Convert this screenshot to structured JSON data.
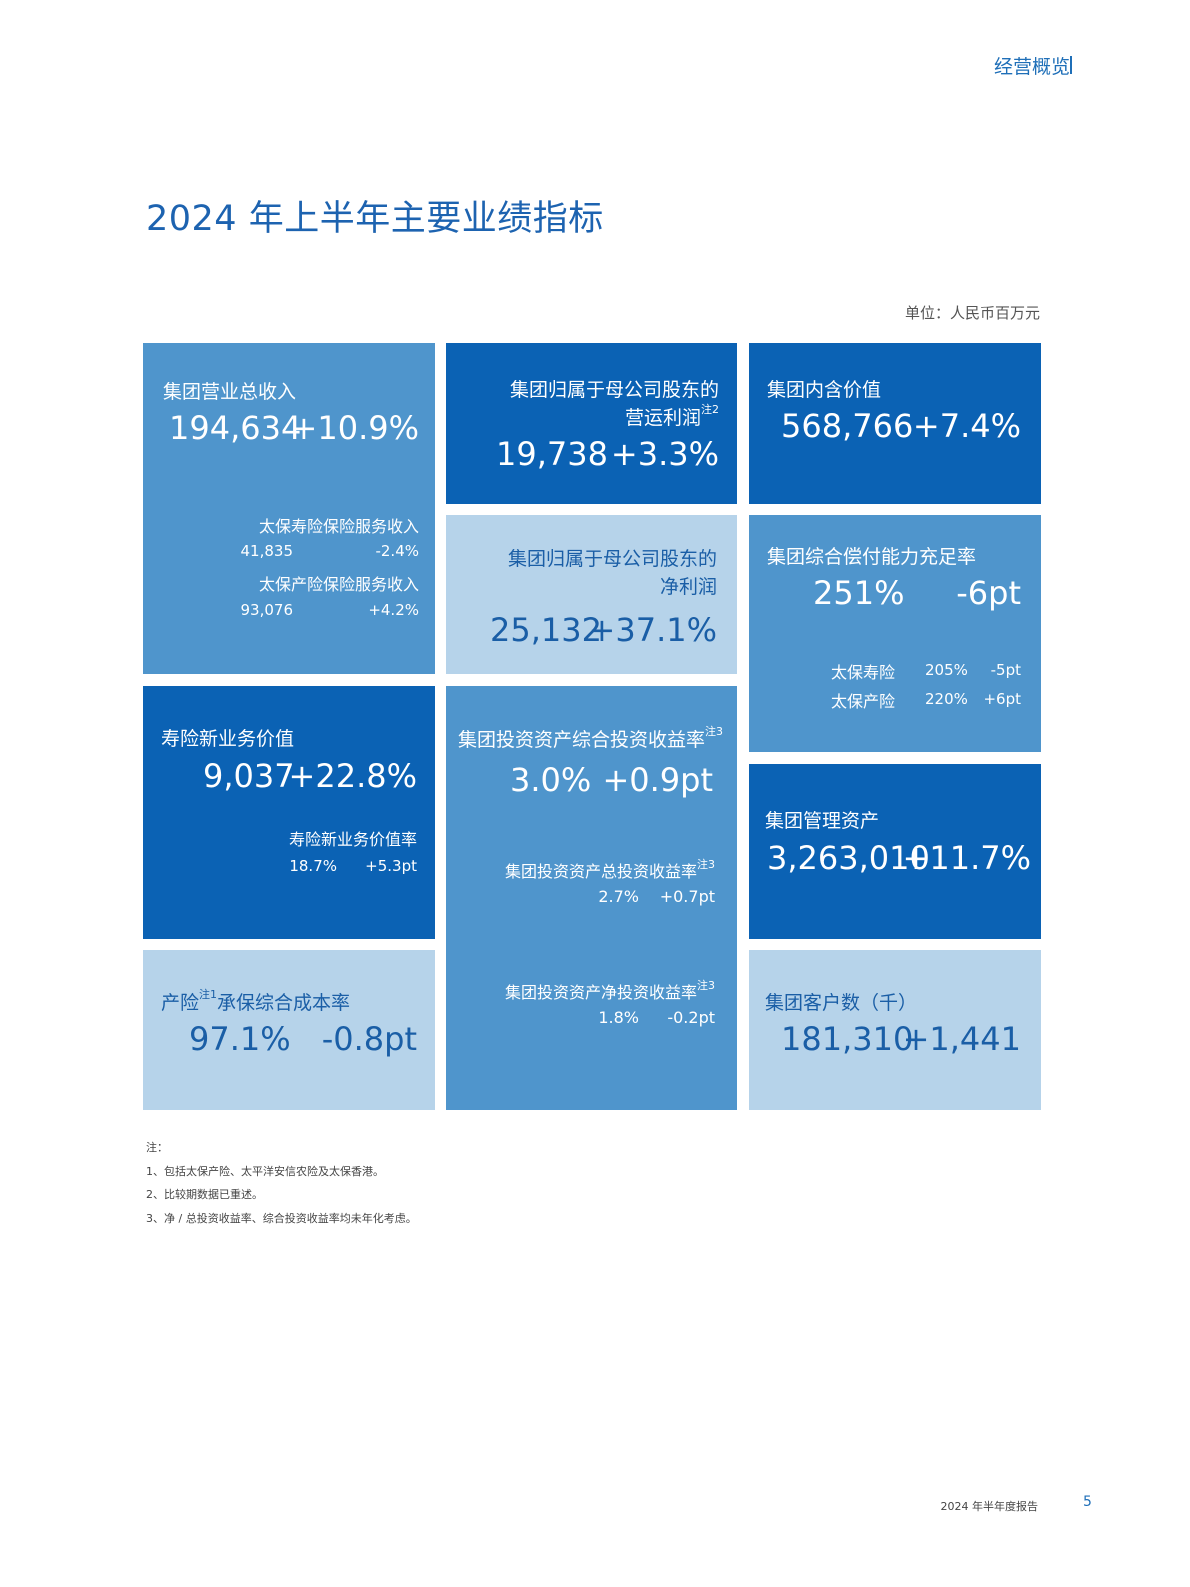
{
  "header": {
    "section": "经营概览"
  },
  "page_title": "2024 年上半年主要业绩指标",
  "unit": "单位：人民币百万元",
  "tiles": {
    "revenue": {
      "label": "集团营业总收入",
      "value": "194,634",
      "change": "+10.9%",
      "subs": [
        {
          "label": "太保寿险保险服务收入",
          "value": "41,835",
          "change": "-2.4%"
        },
        {
          "label": "太保产险保险服务收入",
          "value": "93,076",
          "change": "+4.2%"
        }
      ]
    },
    "operating_profit": {
      "label_line1": "集团归属于母公司股东的",
      "label_line2": "营运利润",
      "note": "注2",
      "value": "19,738",
      "change": "+3.3%"
    },
    "embedded_value": {
      "label": "集团内含价值",
      "value": "568,766",
      "change": "+7.4%"
    },
    "net_profit": {
      "label_line1": "集团归属于母公司股东的",
      "label_line2": "净利润",
      "value": "25,132",
      "change": "+37.1%"
    },
    "solvency": {
      "label": "集团综合偿付能力充足率",
      "value": "251%",
      "change": "-6pt",
      "subs": [
        {
          "label": "太保寿险",
          "value": "205%",
          "change": "-5pt"
        },
        {
          "label": "太保产险",
          "value": "220%",
          "change": "+6pt"
        }
      ]
    },
    "nbv": {
      "label": "寿险新业务价值",
      "value": "9,037",
      "change": "+22.8%",
      "sub_label": "寿险新业务价值率",
      "sub_value": "18.7%",
      "sub_change": "+5.3pt"
    },
    "investment": {
      "label": "集团投资资产综合投资收益率",
      "note": "注3",
      "value": "3.0%",
      "change": "+0.9pt",
      "subs": [
        {
          "label": "集团投资资产总投资收益率",
          "note": "注3",
          "value": "2.7%",
          "change": "+0.7pt"
        },
        {
          "label": "集团投资资产净投资收益率",
          "note": "注3",
          "value": "1.8%",
          "change": "-0.2pt"
        }
      ]
    },
    "aum": {
      "label": "集团管理资产",
      "value": "3,263,010",
      "change": "+11.7%"
    },
    "combined_ratio": {
      "label_a": "产险",
      "note": "注1",
      "label_b": "承保综合成本率",
      "value": "97.1%",
      "change": "-0.8pt"
    },
    "customers": {
      "label": "集团客户数（千）",
      "value": "181,310",
      "change": "+1,441"
    }
  },
  "notes": {
    "title": "注：",
    "items": [
      "1、包括太保产险、太平洋安信农险及太保香港。",
      "2、比较期数据已重述。",
      "3、净 / 总投资收益率、综合投资收益率均未年化考虑。"
    ]
  },
  "footer": {
    "report": "2024 年半年度报告",
    "page": "5"
  }
}
